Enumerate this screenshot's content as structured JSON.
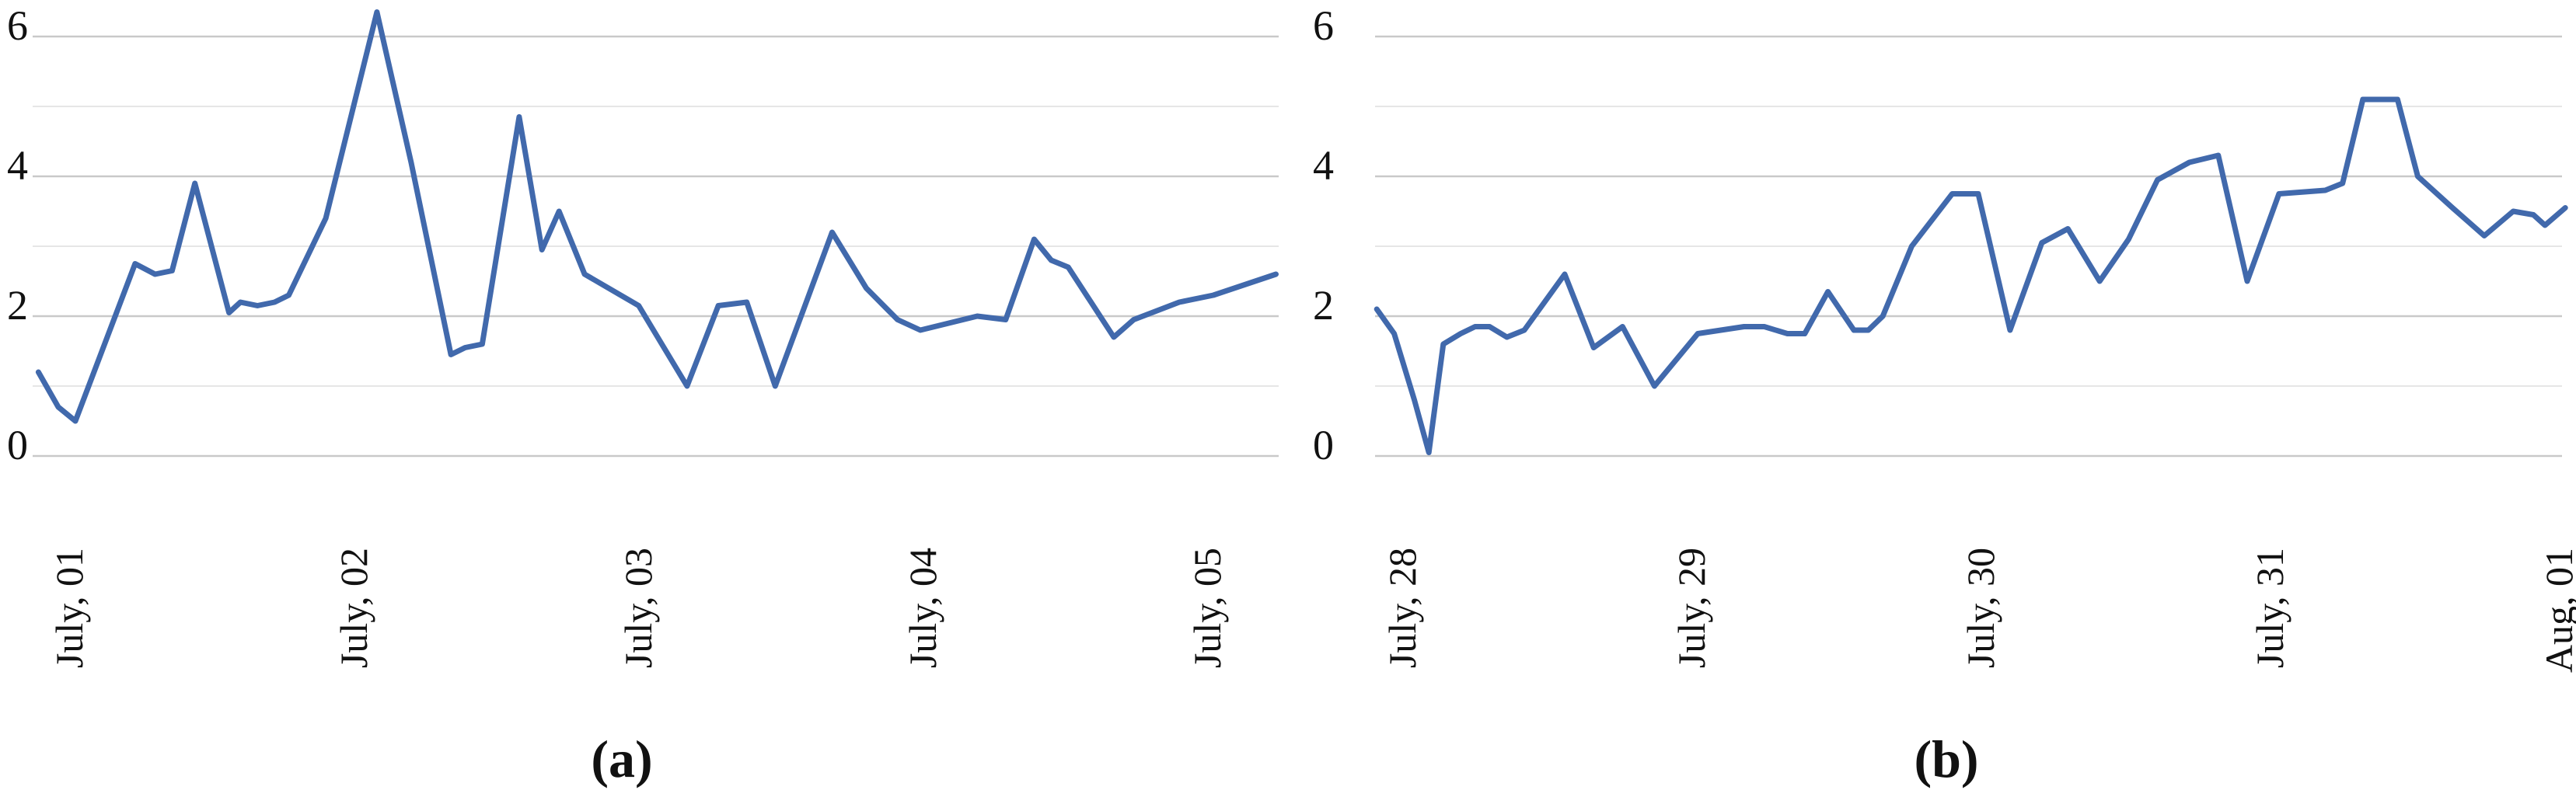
{
  "figure": {
    "type": "two-panel line figure",
    "background": "#ffffff",
    "text_color": "#111111"
  },
  "chart_data": [
    {
      "type": "line",
      "caption": "(a)",
      "x_tick_labels": [
        "July, 01",
        "July, 02",
        "July, 03",
        "July, 04",
        "July, 05"
      ],
      "x_unit": "days from first tick (July 01)",
      "points_format": "[days_from_first_tick, value]",
      "ylim": [
        0,
        6.5
      ],
      "y_gridlines": [
        0,
        1,
        2,
        3,
        4,
        5,
        6
      ],
      "y_ticks_labeled": [
        6,
        4,
        2,
        0
      ],
      "legend": "none",
      "grid": "horizontal only",
      "line_color": "#4169ac",
      "grid_major_color": "#c9c9c9",
      "grid_minor_color": "#e6e6e6",
      "points": [
        [
          -0.1,
          1.2
        ],
        [
          -0.03,
          0.7
        ],
        [
          0.03,
          0.5
        ],
        [
          0.24,
          2.75
        ],
        [
          0.31,
          2.6
        ],
        [
          0.37,
          2.65
        ],
        [
          0.45,
          3.9
        ],
        [
          0.57,
          2.05
        ],
        [
          0.61,
          2.2
        ],
        [
          0.67,
          2.15
        ],
        [
          0.73,
          2.2
        ],
        [
          0.78,
          2.3
        ],
        [
          0.91,
          3.4
        ],
        [
          1.09,
          6.35
        ],
        [
          1.21,
          4.2
        ],
        [
          1.35,
          1.45
        ],
        [
          1.4,
          1.55
        ],
        [
          1.46,
          1.6
        ],
        [
          1.59,
          4.85
        ],
        [
          1.67,
          2.95
        ],
        [
          1.73,
          3.5
        ],
        [
          1.82,
          2.6
        ],
        [
          2.01,
          2.15
        ],
        [
          2.18,
          1.0
        ],
        [
          2.29,
          2.15
        ],
        [
          2.39,
          2.2
        ],
        [
          2.49,
          1.0
        ],
        [
          2.69,
          3.2
        ],
        [
          2.81,
          2.4
        ],
        [
          2.92,
          1.95
        ],
        [
          3.0,
          1.8
        ],
        [
          3.1,
          1.9
        ],
        [
          3.2,
          2.0
        ],
        [
          3.3,
          1.95
        ],
        [
          3.4,
          3.1
        ],
        [
          3.46,
          2.8
        ],
        [
          3.52,
          2.7
        ],
        [
          3.68,
          1.7
        ],
        [
          3.75,
          1.95
        ],
        [
          3.91,
          2.2
        ],
        [
          4.03,
          2.3
        ],
        [
          4.25,
          2.6
        ]
      ]
    },
    {
      "type": "line",
      "caption": "(b)",
      "x_tick_labels": [
        "July, 28",
        "July, 29",
        "July, 30",
        "July, 31",
        "Aug, 01"
      ],
      "x_unit": "days from first tick (July 28)",
      "points_format": "[days_from_first_tick, value]",
      "ylim": [
        0,
        6.5
      ],
      "y_gridlines": [
        0,
        1,
        2,
        3,
        4,
        5,
        6
      ],
      "y_ticks_labeled": [
        6,
        4,
        2,
        0
      ],
      "legend": "none",
      "grid": "horizontal only",
      "line_color": "#4169ac",
      "grid_major_color": "#c9c9c9",
      "grid_minor_color": "#e6e6e6",
      "points": [
        [
          -0.08,
          2.1
        ],
        [
          -0.02,
          1.75
        ],
        [
          0.05,
          0.8
        ],
        [
          0.1,
          0.05
        ],
        [
          0.15,
          1.6
        ],
        [
          0.21,
          1.75
        ],
        [
          0.26,
          1.85
        ],
        [
          0.31,
          1.85
        ],
        [
          0.37,
          1.7
        ],
        [
          0.43,
          1.8
        ],
        [
          0.57,
          2.6
        ],
        [
          0.67,
          1.55
        ],
        [
          0.77,
          1.85
        ],
        [
          0.88,
          1.0
        ],
        [
          0.94,
          1.3
        ],
        [
          1.03,
          1.75
        ],
        [
          1.11,
          1.8
        ],
        [
          1.19,
          1.85
        ],
        [
          1.26,
          1.85
        ],
        [
          1.34,
          1.75
        ],
        [
          1.4,
          1.75
        ],
        [
          1.48,
          2.35
        ],
        [
          1.57,
          1.8
        ],
        [
          1.62,
          1.8
        ],
        [
          1.67,
          2.0
        ],
        [
          1.77,
          3.0
        ],
        [
          1.91,
          3.75
        ],
        [
          2.0,
          3.75
        ],
        [
          2.11,
          1.8
        ],
        [
          2.22,
          3.05
        ],
        [
          2.31,
          3.25
        ],
        [
          2.42,
          2.5
        ],
        [
          2.52,
          3.1
        ],
        [
          2.62,
          3.95
        ],
        [
          2.73,
          4.2
        ],
        [
          2.83,
          4.3
        ],
        [
          2.93,
          2.5
        ],
        [
          3.04,
          3.75
        ],
        [
          3.2,
          3.8
        ],
        [
          3.26,
          3.9
        ],
        [
          3.33,
          5.1
        ],
        [
          3.45,
          5.1
        ],
        [
          3.52,
          4.0
        ],
        [
          3.64,
          3.55
        ],
        [
          3.75,
          3.15
        ],
        [
          3.85,
          3.5
        ],
        [
          3.92,
          3.45
        ],
        [
          3.96,
          3.3
        ],
        [
          4.03,
          3.55
        ]
      ]
    }
  ]
}
